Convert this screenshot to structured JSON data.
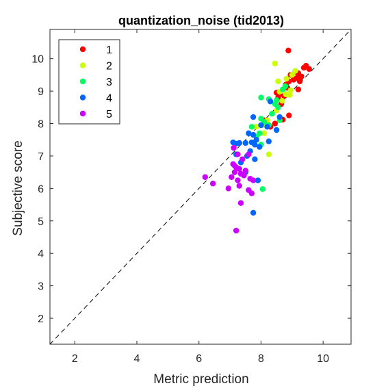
{
  "chart_data": {
    "type": "scatter",
    "title": "quantization_noise (tid2013)",
    "xlabel": "Metric prediction",
    "ylabel": "Subjective score",
    "xlim": [
      1.2,
      10.9
    ],
    "ylim": [
      1.2,
      10.9
    ],
    "xticks": [
      2,
      4,
      6,
      8,
      10
    ],
    "yticks": [
      2,
      3,
      4,
      5,
      6,
      7,
      8,
      9,
      10
    ],
    "grid": false,
    "diagonal_reference_line": true,
    "legend_position": "top-left",
    "series": [
      {
        "name": "1",
        "color": "#ff0000",
        "points": [
          [
            8.88,
            10.25
          ],
          [
            9.45,
            9.78
          ],
          [
            9.38,
            9.72
          ],
          [
            9.55,
            9.68
          ],
          [
            9.1,
            9.6
          ],
          [
            9.2,
            9.55
          ],
          [
            8.95,
            9.5
          ],
          [
            9.3,
            9.45
          ],
          [
            9.15,
            9.4
          ],
          [
            9.05,
            9.35
          ],
          [
            8.9,
            9.3
          ],
          [
            9.25,
            9.3
          ],
          [
            8.8,
            9.2
          ],
          [
            8.85,
            9.1
          ],
          [
            9.2,
            9.05
          ],
          [
            8.5,
            8.95
          ],
          [
            8.6,
            8.9
          ],
          [
            8.75,
            8.85
          ],
          [
            8.55,
            8.8
          ],
          [
            8.65,
            8.6
          ],
          [
            8.9,
            8.25
          ],
          [
            8.7,
            8.12
          ],
          [
            8.45,
            8.0
          ],
          [
            8.3,
            7.9
          ],
          [
            8.1,
            8.1
          ]
        ]
      },
      {
        "name": "2",
        "color": "#ccff00",
        "points": [
          [
            8.45,
            9.85
          ],
          [
            8.82,
            9.38
          ],
          [
            9.0,
            9.5
          ],
          [
            9.1,
            9.62
          ],
          [
            8.55,
            9.3
          ],
          [
            8.7,
            9.05
          ],
          [
            8.95,
            9.02
          ],
          [
            8.6,
            8.98
          ],
          [
            8.8,
            8.9
          ],
          [
            8.92,
            8.88
          ],
          [
            8.68,
            8.7
          ],
          [
            8.35,
            8.3
          ],
          [
            8.5,
            8.4
          ],
          [
            8.2,
            8.1
          ],
          [
            7.85,
            7.9
          ],
          [
            8.05,
            7.95
          ],
          [
            8.25,
            7.05
          ],
          [
            8.1,
            7.7
          ]
        ]
      },
      {
        "name": "3",
        "color": "#00ff66",
        "points": [
          [
            8.0,
            8.8
          ],
          [
            8.25,
            8.75
          ],
          [
            8.5,
            8.72
          ],
          [
            8.7,
            9.05
          ],
          [
            8.78,
            9.15
          ],
          [
            8.45,
            8.6
          ],
          [
            8.55,
            8.5
          ],
          [
            8.35,
            8.3
          ],
          [
            8.0,
            8.15
          ],
          [
            8.1,
            8.05
          ],
          [
            8.25,
            7.95
          ],
          [
            7.95,
            7.7
          ],
          [
            7.85,
            7.6
          ],
          [
            8.0,
            7.35
          ],
          [
            7.7,
            7.9
          ],
          [
            8.05,
            5.98
          ],
          [
            8.6,
            8.1
          ]
        ]
      },
      {
        "name": "4",
        "color": "#0066ff",
        "points": [
          [
            8.3,
            8.68
          ],
          [
            8.6,
            8.2
          ],
          [
            8.5,
            7.8
          ],
          [
            8.2,
            7.9
          ],
          [
            8.0,
            7.95
          ],
          [
            7.75,
            8.2
          ],
          [
            7.6,
            7.7
          ],
          [
            7.75,
            7.65
          ],
          [
            7.7,
            7.42
          ],
          [
            7.85,
            7.5
          ],
          [
            8.25,
            7.45
          ],
          [
            7.5,
            7.4
          ],
          [
            7.3,
            7.4
          ],
          [
            7.2,
            7.38
          ],
          [
            7.1,
            7.42
          ],
          [
            7.95,
            7.28
          ],
          [
            7.8,
            7.35
          ],
          [
            7.65,
            7.15
          ],
          [
            7.8,
            6.9
          ],
          [
            7.55,
            7.0
          ],
          [
            7.2,
            7.05
          ],
          [
            7.5,
            6.5
          ],
          [
            7.9,
            6.25
          ],
          [
            7.75,
            5.25
          ],
          [
            7.35,
            6.8
          ]
        ]
      },
      {
        "name": "5",
        "color": "#cc00ff",
        "points": [
          [
            6.2,
            6.35
          ],
          [
            6.45,
            6.15
          ],
          [
            7.12,
            7.25
          ],
          [
            7.25,
            7.05
          ],
          [
            7.4,
            6.9
          ],
          [
            7.6,
            7.05
          ],
          [
            7.1,
            6.75
          ],
          [
            7.2,
            6.65
          ],
          [
            7.3,
            6.6
          ],
          [
            7.5,
            6.55
          ],
          [
            7.15,
            6.5
          ],
          [
            7.35,
            6.45
          ],
          [
            7.45,
            6.4
          ],
          [
            7.05,
            6.35
          ],
          [
            7.25,
            6.25
          ],
          [
            7.65,
            6.3
          ],
          [
            6.95,
            6.0
          ],
          [
            7.3,
            6.08
          ],
          [
            7.6,
            5.95
          ],
          [
            7.7,
            5.85
          ],
          [
            7.35,
            5.55
          ],
          [
            7.2,
            4.7
          ],
          [
            7.75,
            6.25
          ],
          [
            7.15,
            6.7
          ]
        ]
      }
    ]
  }
}
